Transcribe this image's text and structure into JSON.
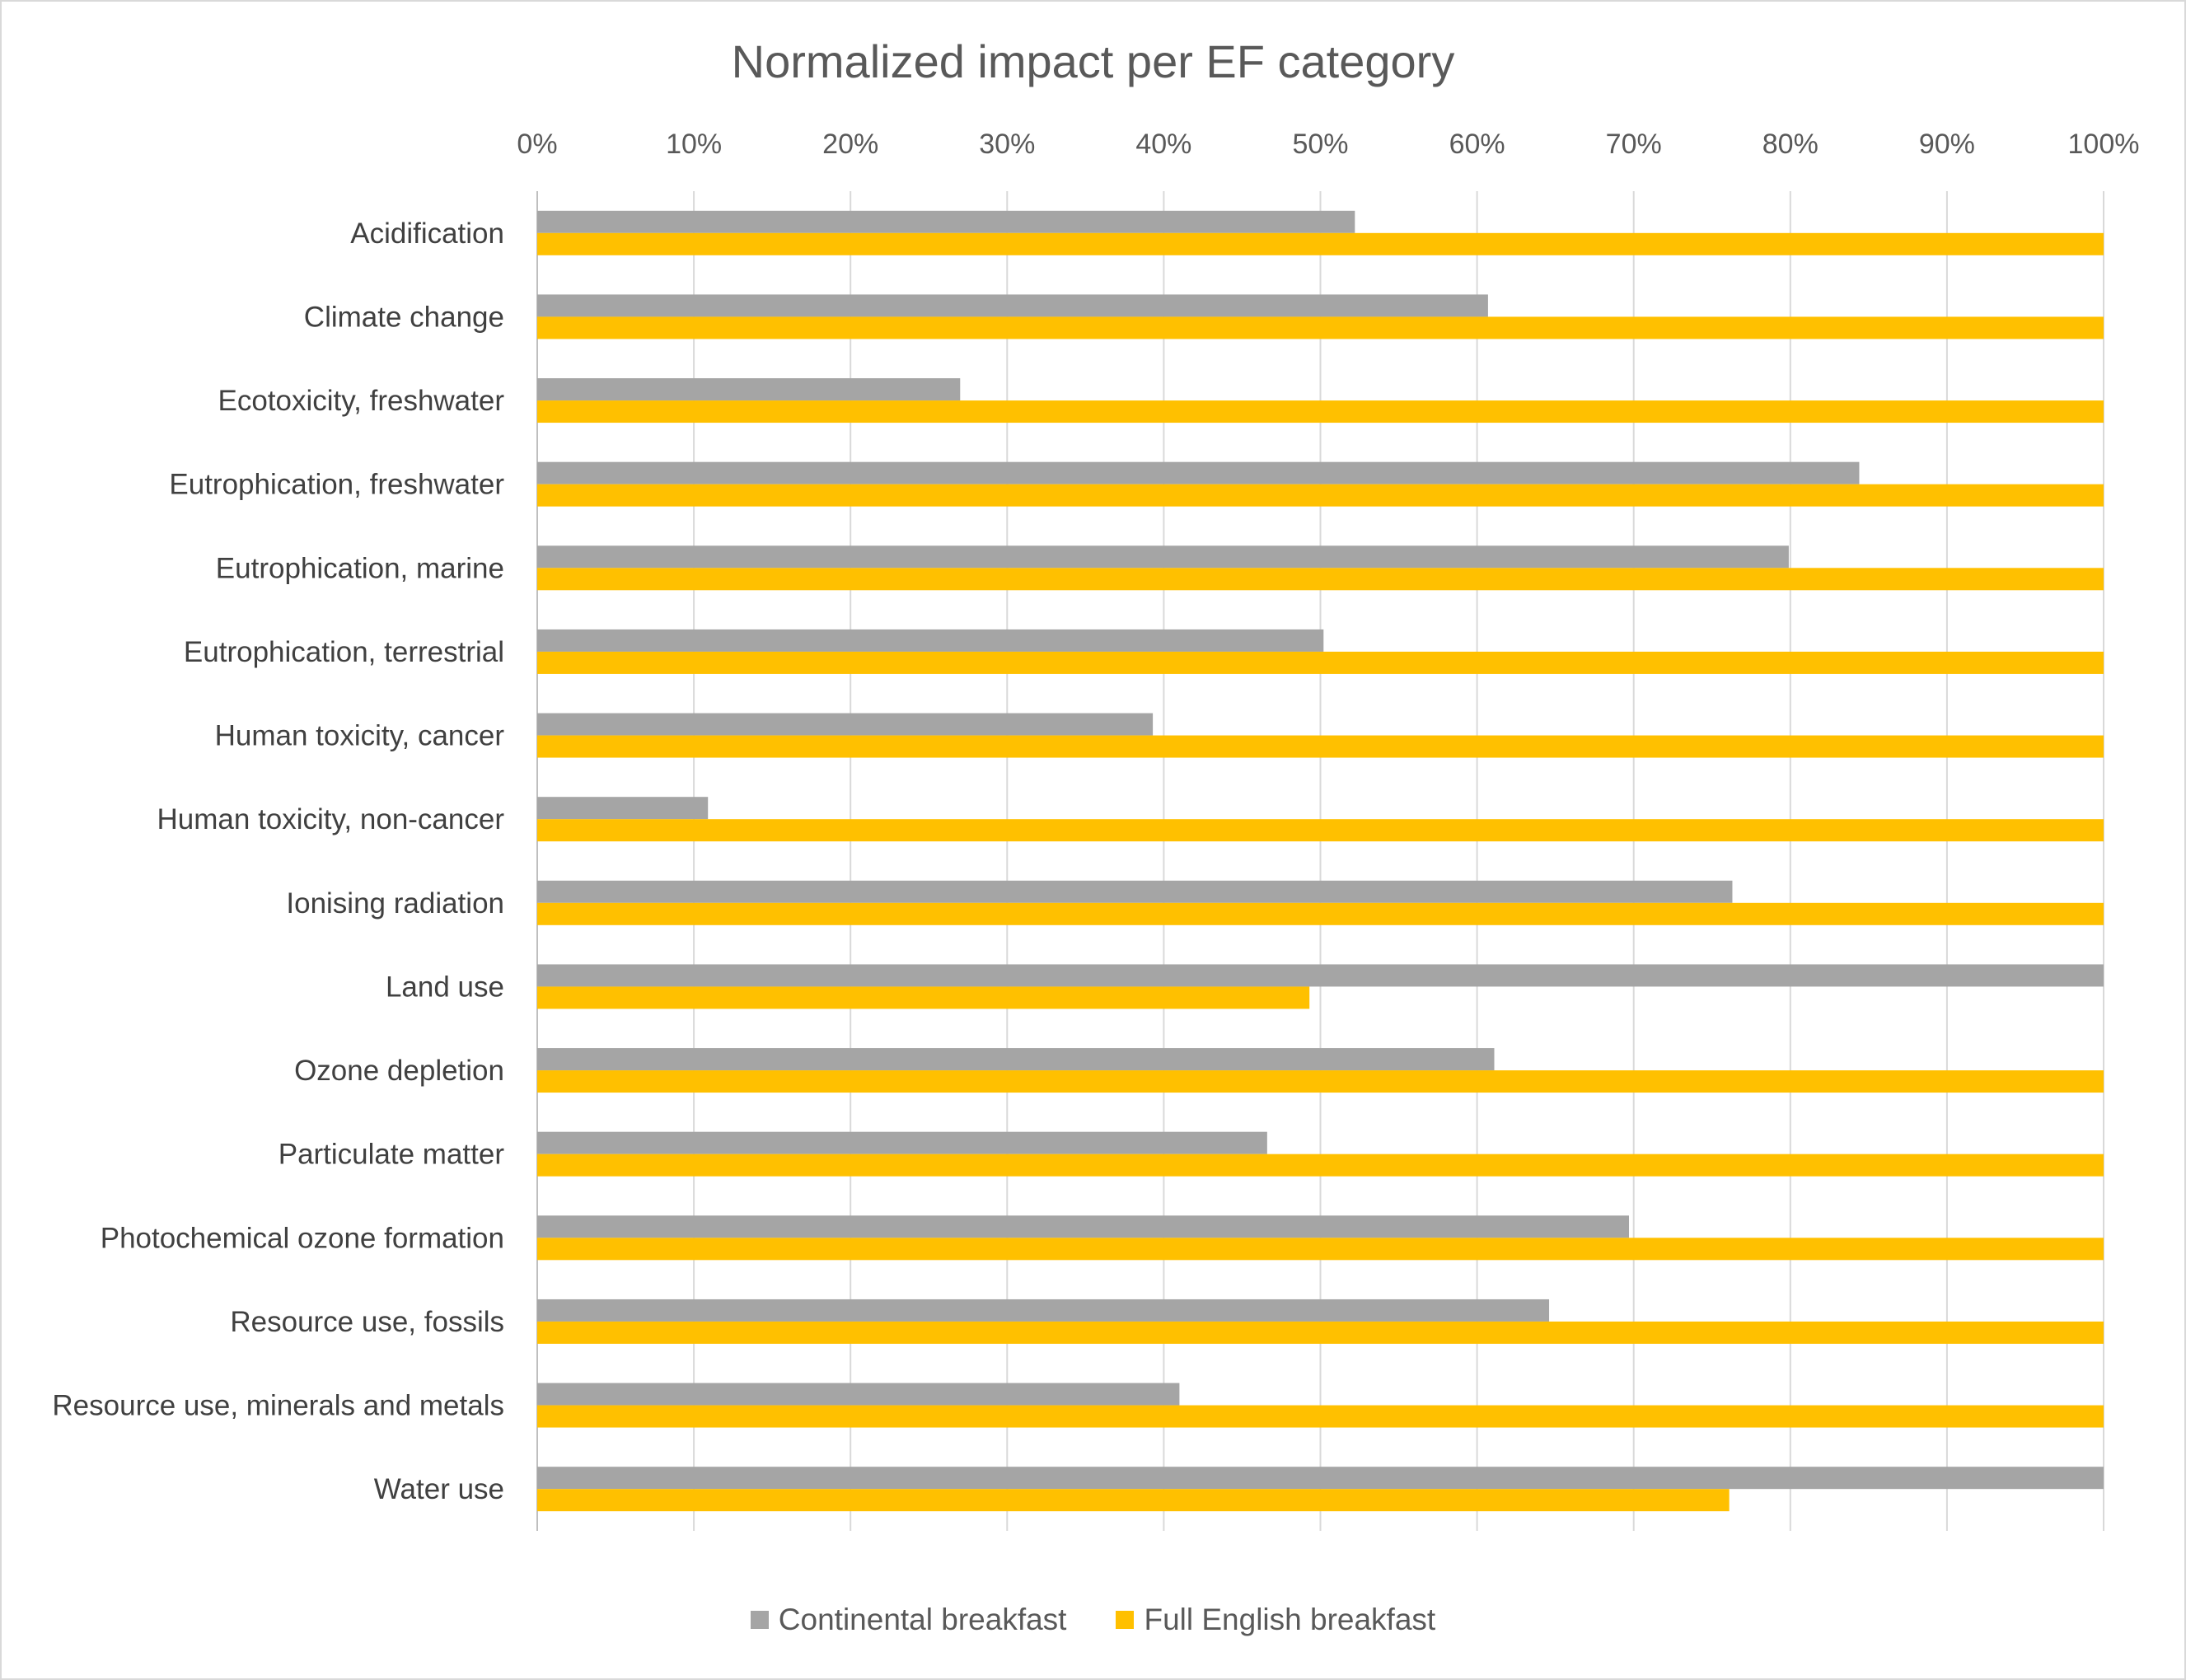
{
  "chart_data": {
    "type": "bar",
    "orientation": "horizontal",
    "title": "Normalized impact per EF category",
    "xlabel": "",
    "ylabel": "",
    "xlim": [
      0,
      100
    ],
    "x_ticks": [
      "0%",
      "10%",
      "20%",
      "30%",
      "40%",
      "50%",
      "60%",
      "70%",
      "80%",
      "90%",
      "100%"
    ],
    "x_axis_position": "top",
    "grid": true,
    "legend_position": "bottom",
    "categories": [
      "Acidification",
      "Climate change",
      "Ecotoxicity, freshwater",
      "Eutrophication, freshwater",
      "Eutrophication, marine",
      "Eutrophication, terrestrial",
      "Human toxicity, cancer",
      "Human toxicity, non-cancer",
      "Ionising radiation",
      "Land use",
      "Ozone depletion",
      "Particulate matter",
      "Photochemical ozone formation",
      "Resource use, fossils",
      "Resource use, minerals and metals",
      "Water use"
    ],
    "series": [
      {
        "name": "Continental breakfast",
        "color": "#a5a5a5",
        "values": [
          52.2,
          60.7,
          27.0,
          84.4,
          79.9,
          50.2,
          39.3,
          10.9,
          76.3,
          100,
          61.1,
          46.6,
          69.7,
          64.6,
          41.0,
          100
        ]
      },
      {
        "name": "Full English breakfast",
        "color": "#ffc000",
        "values": [
          100,
          100,
          100,
          100,
          100,
          100,
          100,
          100,
          100,
          49.3,
          100,
          100,
          100,
          100,
          100,
          76.1
        ]
      }
    ]
  }
}
